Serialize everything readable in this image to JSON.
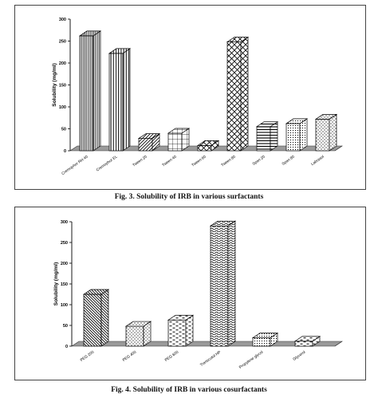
{
  "figures": [
    {
      "caption": "Fig. 3. Solubility of IRB in various surfactants"
    },
    {
      "caption": "Fig. 4. Solubility of IRB in various cosurfactants"
    }
  ],
  "chart_data": [
    {
      "type": "bar",
      "title": "",
      "xlabel": "",
      "ylabel": "Solubility (mg/ml)",
      "ylim": [
        0,
        300
      ],
      "yticks": [
        0,
        50,
        100,
        150,
        200,
        250,
        300
      ],
      "categories": [
        "Cremophor RH 40",
        "Cremophor EL",
        "Tween 20",
        "Tween 40",
        "Tween 60",
        "Tween 80",
        "Span 20",
        "Span 80",
        "Labrasol"
      ],
      "values": [
        262,
        222,
        28,
        40,
        12,
        248,
        55,
        62,
        72
      ],
      "patterns": [
        "vlines-fine",
        "vlines",
        "diag",
        "grid",
        "cross",
        "cross",
        "hlines",
        "dots-fine",
        "dots"
      ],
      "grid": false,
      "legend": "none"
    },
    {
      "type": "bar",
      "title": "",
      "xlabel": "",
      "ylabel": "Solubility (mg/ml)",
      "ylim": [
        0,
        300
      ],
      "yticks": [
        0,
        50,
        100,
        150,
        200,
        250,
        300
      ],
      "categories": [
        "PEG 200",
        "PEG 400",
        "PEG 600",
        "Transcutol HP",
        "Propylene glycol",
        "Glycerol"
      ],
      "values": [
        125,
        48,
        63,
        290,
        20,
        12
      ],
      "patterns": [
        "diag-back",
        "dots",
        "dashes",
        "waves",
        "dots-fine",
        "dashes"
      ],
      "grid": false,
      "legend": "none"
    }
  ]
}
